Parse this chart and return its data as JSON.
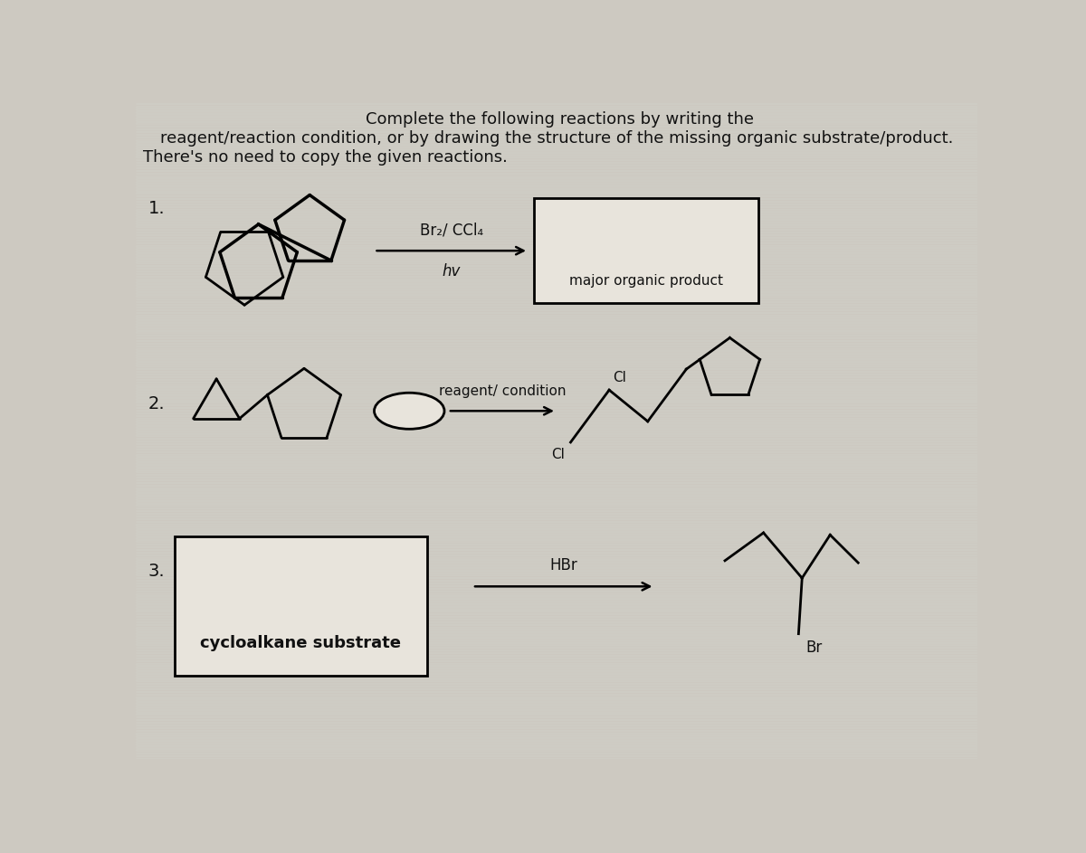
{
  "bg_color": "#cdc9c1",
  "title_line1": "Complete the following reactions by writing the",
  "title_line2": "reagent/reaction condition, or by drawing the structure of the missing organic substrate/product.",
  "title_line3": "There's no need to copy the given reactions.",
  "reaction1_label": "1.",
  "reaction1_reagent1": "Br₂/ CCl₄",
  "reaction1_reagent2": "hv",
  "reaction1_box_label": "major organic product",
  "reaction2_label": "2.",
  "reaction2_reagent": "reagent/ condition",
  "reaction2_cl1": "Cl",
  "reaction2_cl2": "Cl",
  "reaction3_label": "3.",
  "reaction3_reagent": "HBr",
  "reaction3_box_label": "cycloalkane substrate",
  "reaction3_br": "Br",
  "line_color": "#000000",
  "box_fill": "#c8c4bc",
  "text_color": "#111111",
  "white_box_fill": "#e8e4dc"
}
